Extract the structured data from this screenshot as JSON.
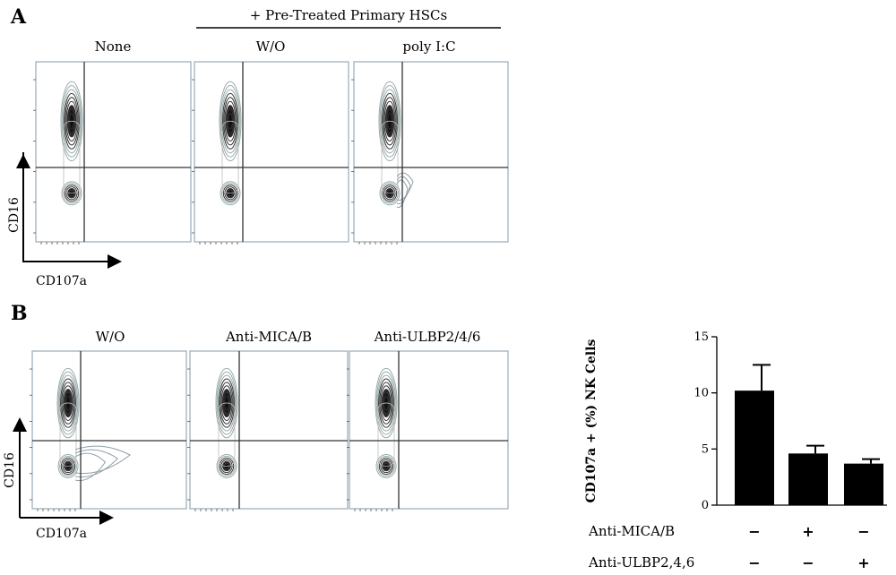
{
  "panel_a": {
    "letter": "A",
    "header": "+ Pre-Treated Primary HSCs",
    "plot_titles": [
      "None",
      "W/O",
      "poly I:C"
    ],
    "y_axis_label": "CD16",
    "x_axis_label": "CD107a"
  },
  "panel_b": {
    "letter": "B",
    "plot_titles": [
      "W/O",
      "Anti-MICA/B",
      "Anti-ULBP2/4/6"
    ],
    "y_axis_label": "CD16",
    "x_axis_label": "CD107a"
  },
  "chart_data": {
    "type": "bar",
    "ylabel": "CD107a + (%) NK Cells",
    "ylim": [
      0,
      15
    ],
    "yticks": [
      "0",
      "5",
      "10",
      "15"
    ],
    "values": [
      10.2,
      4.6,
      3.7
    ],
    "errors": [
      2.3,
      0.7,
      0.4
    ],
    "conditions": [
      {
        "name": "Anti-MICA/B",
        "signs": [
          "−",
          "+",
          "−"
        ]
      },
      {
        "name": "Anti-ULBP2,4,6",
        "signs": [
          "−",
          "−",
          "+"
        ]
      }
    ],
    "colors": {
      "bar": "#000000"
    }
  }
}
